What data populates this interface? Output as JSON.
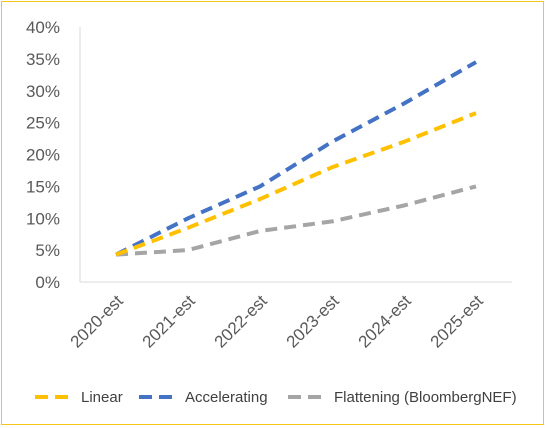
{
  "chart_data": {
    "type": "line",
    "title": "",
    "xlabel": "",
    "ylabel": "",
    "categories": [
      "2020-est",
      "2021-est",
      "2022-est",
      "2023-est",
      "2024-est",
      "2025-est"
    ],
    "ylim": [
      0,
      40
    ],
    "yticks": [
      "0%",
      "5%",
      "10%",
      "15%",
      "20%",
      "25%",
      "30%",
      "35%",
      "40%"
    ],
    "grid": false,
    "legend_position": "bottom",
    "series": [
      {
        "name": "Linear",
        "color": "#FFC000",
        "dash": "dashed",
        "values": [
          4.3,
          8.5,
          13,
          18,
          22,
          26.5
        ]
      },
      {
        "name": "Accelerating",
        "color": "#4472C4",
        "dash": "dashed",
        "values": [
          4.3,
          10,
          15,
          22,
          28,
          34.5
        ]
      },
      {
        "name": "Flattening (BloombergNEF)",
        "color": "#A5A5A5",
        "dash": "dashed",
        "values": [
          4.3,
          5,
          8,
          9.5,
          12,
          15
        ]
      }
    ]
  }
}
